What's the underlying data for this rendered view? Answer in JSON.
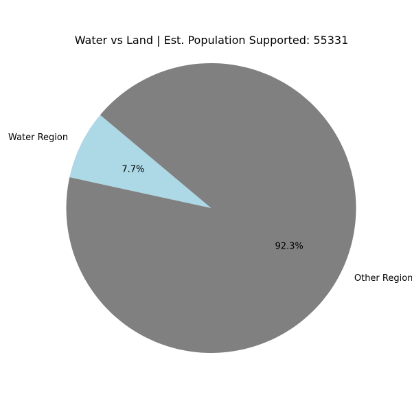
{
  "chart_data": {
    "type": "pie",
    "title": "Water vs Land | Est. Population Supported: 55331",
    "slices": [
      {
        "label": "Water Region",
        "value": 7.7,
        "percent_label": "7.7%",
        "color": "#add8e6"
      },
      {
        "label": "Other Region",
        "value": 92.3,
        "percent_label": "92.3%",
        "color": "#808080"
      }
    ]
  }
}
